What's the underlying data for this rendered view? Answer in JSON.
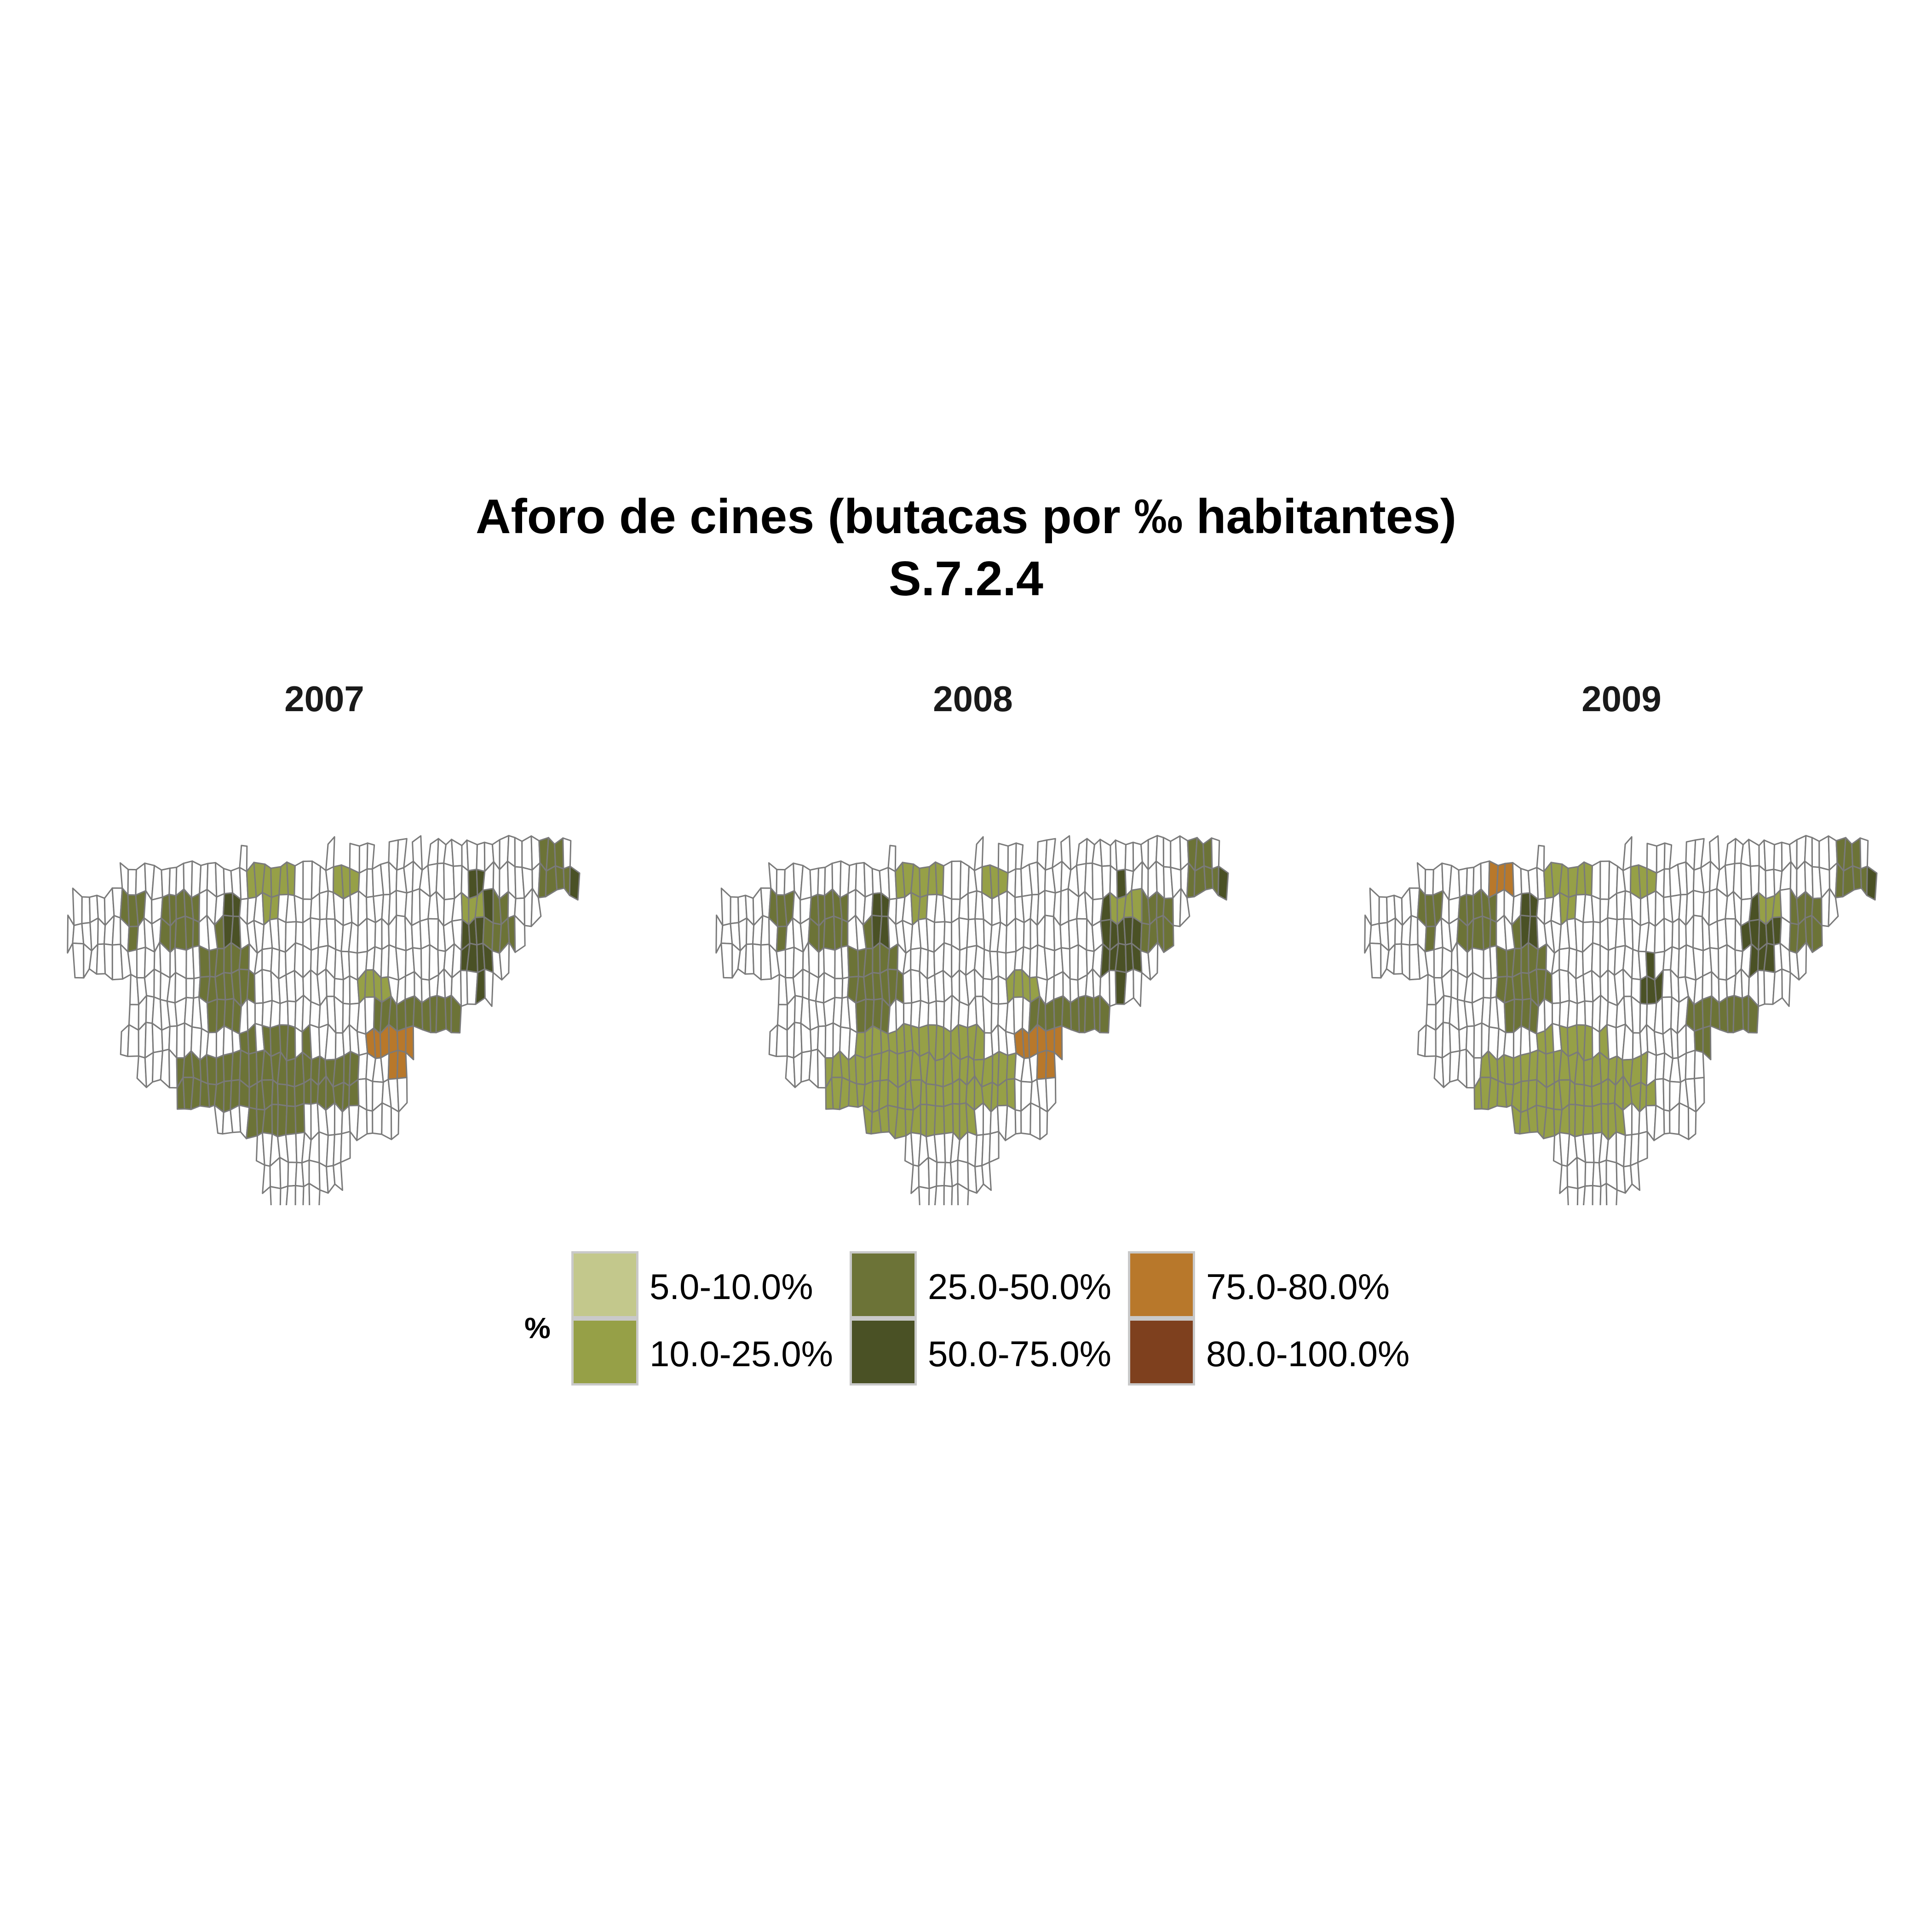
{
  "title": "Aforo de cines (butacas por ‰ habitantes)",
  "subtitle": "S.7.2.4",
  "legend": {
    "title": "%",
    "items": [
      {
        "label": "5.0-10.0%",
        "color": "#c3c88c"
      },
      {
        "label": "10.0-25.0%",
        "color": "#96a047"
      },
      {
        "label": "25.0-50.0%",
        "color": "#6c7337"
      },
      {
        "label": "50.0-75.0%",
        "color": "#4a5125"
      },
      {
        "label": "75.0-80.0%",
        "color": "#b8782b"
      },
      {
        "label": "80.0-100.0%",
        "color": "#7e401e"
      }
    ]
  },
  "no_data_color": "#ffffff",
  "chart_data": {
    "type": "choropleth",
    "panels": [
      {
        "title": "2007",
        "highlighted_classes": [
          "5.0-10.0%",
          "10.0-25.0%",
          "25.0-50.0%",
          "50.0-75.0%",
          "75.0-80.0%",
          "80.0-100.0%"
        ]
      },
      {
        "title": "2008",
        "highlighted_classes": [
          "5.0-10.0%",
          "10.0-25.0%",
          "25.0-50.0%",
          "50.0-75.0%",
          "75.0-80.0%"
        ]
      },
      {
        "title": "2009",
        "highlighted_classes": [
          "5.0-10.0%",
          "10.0-25.0%",
          "25.0-50.0%",
          "50.0-75.0%",
          "75.0-80.0%"
        ]
      }
    ]
  }
}
